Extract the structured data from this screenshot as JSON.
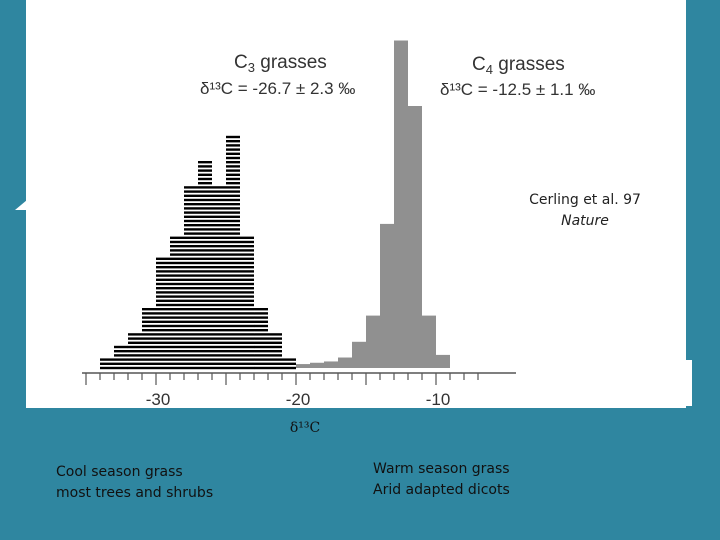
{
  "citation": {
    "author": "Cerling et al. 97",
    "journal": "Nature"
  },
  "axis_title": "δ¹³C",
  "captions": {
    "left": [
      "Cool season grass",
      "most trees and shrubs"
    ],
    "right": [
      "Warm season grass",
      "Arid adapted dicots"
    ]
  },
  "colors": {
    "background": "#2f86a0",
    "c3": "#000000",
    "c4": "#909090"
  },
  "chart_data": {
    "type": "bar",
    "x_range": [
      -35.5,
      -7
    ],
    "x_ticks": [
      -30,
      -20,
      -10
    ],
    "x_tick_labels": [
      "-30",
      "-20",
      "-10"
    ],
    "xlabel": "δ¹³C",
    "ylabel": "",
    "series": [
      {
        "name": "C3 grasses",
        "annotation_head": "C",
        "annotation_sub": "3",
        "annotation_rest": " grasses",
        "stat_label": "δ¹³C = -26.7 ± 2.3 ‰",
        "style": "hatched",
        "bins": [
          {
            "x0": -34,
            "x1": -33,
            "count": 1
          },
          {
            "x0": -33,
            "x1": -32,
            "count": 2
          },
          {
            "x0": -32,
            "x1": -31,
            "count": 3
          },
          {
            "x0": -31,
            "x1": -30,
            "count": 5
          },
          {
            "x0": -30,
            "x1": -29,
            "count": 9
          },
          {
            "x0": -29,
            "x1": -28,
            "count": 11
          },
          {
            "x0": -28,
            "x1": -27,
            "count": 15
          },
          {
            "x0": -27,
            "x1": -26,
            "count": 17
          },
          {
            "x0": -26,
            "x1": -25,
            "count": 15
          },
          {
            "x0": -25,
            "x1": -24,
            "count": 19
          },
          {
            "x0": -24,
            "x1": -23,
            "count": 11
          },
          {
            "x0": -23,
            "x1": -22,
            "count": 5
          },
          {
            "x0": -22,
            "x1": -21,
            "count": 3
          },
          {
            "x0": -21,
            "x1": -20,
            "count": 1
          }
        ]
      },
      {
        "name": "C4 grasses",
        "annotation_head": "C",
        "annotation_sub": "4",
        "annotation_rest": " grasses",
        "stat_label": "δ¹³C = -12.5 ± 1.1 ‰",
        "style": "solid",
        "bins": [
          {
            "x0": -20,
            "x1": -19,
            "count": 0.3
          },
          {
            "x0": -19,
            "x1": -18,
            "count": 0.4
          },
          {
            "x0": -18,
            "x1": -17,
            "count": 0.5
          },
          {
            "x0": -17,
            "x1": -16,
            "count": 0.8
          },
          {
            "x0": -16,
            "x1": -15,
            "count": 2
          },
          {
            "x0": -15,
            "x1": -14,
            "count": 4
          },
          {
            "x0": -14,
            "x1": -13,
            "count": 11
          },
          {
            "x0": -13,
            "x1": -12,
            "count": 25
          },
          {
            "x0": -12,
            "x1": -11,
            "count": 20
          },
          {
            "x0": -11,
            "x1": -10,
            "count": 4
          },
          {
            "x0": -10,
            "x1": -9,
            "count": 1
          }
        ]
      }
    ]
  }
}
